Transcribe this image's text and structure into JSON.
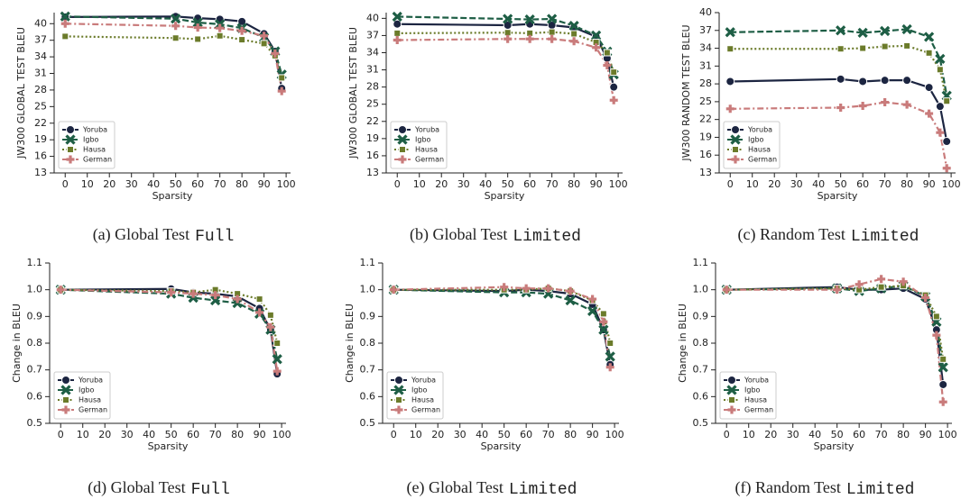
{
  "chart_data": [
    {
      "type": "line",
      "caption": {
        "text": "(a) Global Test",
        "code": "Full"
      },
      "xlabel": "Sparsity",
      "ylabel": "JW300 GLOBAL TEST BLEU",
      "x": [
        0,
        50,
        60,
        70,
        80,
        90,
        95,
        98
      ],
      "xlim": [
        -5,
        102
      ],
      "xticks": [
        0,
        10,
        20,
        30,
        40,
        50,
        60,
        70,
        80,
        90,
        100
      ],
      "ylim": [
        13,
        42
      ],
      "yticks": [
        13,
        16,
        19,
        22,
        25,
        28,
        31,
        34,
        37,
        40
      ],
      "legend": "lower left",
      "series": [
        {
          "name": "Yoruba",
          "color": "#1c2541",
          "dash": "solid",
          "marker": "circle",
          "values": [
            41.2,
            41.3,
            41.0,
            40.8,
            40.4,
            38.2,
            35.0,
            28.3
          ]
        },
        {
          "name": "Igbo",
          "color": "#1e5e45",
          "dash": "dashed",
          "marker": "x",
          "values": [
            41.3,
            40.9,
            40.2,
            39.9,
            39.2,
            37.5,
            35.0,
            30.8
          ]
        },
        {
          "name": "Hausa",
          "color": "#6b7b2a",
          "dash": "dotted",
          "marker": "square",
          "values": [
            37.7,
            37.4,
            37.2,
            37.8,
            37.1,
            36.4,
            34.2,
            30.2
          ]
        },
        {
          "name": "German",
          "color": "#c97b7b",
          "dash": "dashdot",
          "marker": "plus",
          "values": [
            40.0,
            39.6,
            39.3,
            39.2,
            38.7,
            37.8,
            34.6,
            27.8
          ]
        }
      ]
    },
    {
      "type": "line",
      "caption": {
        "text": "(b) Global Test",
        "code": "Limited"
      },
      "xlabel": "Sparsity",
      "ylabel": "JW300 GLOBAL TEST BLEU",
      "x": [
        0,
        50,
        60,
        70,
        80,
        90,
        95,
        98
      ],
      "xlim": [
        -5,
        102
      ],
      "xticks": [
        0,
        10,
        20,
        30,
        40,
        50,
        60,
        70,
        80,
        90,
        100
      ],
      "ylim": [
        13,
        41
      ],
      "yticks": [
        13,
        16,
        19,
        22,
        25,
        28,
        31,
        34,
        37,
        40
      ],
      "legend": "lower left",
      "series": [
        {
          "name": "Yoruba",
          "color": "#1c2541",
          "dash": "solid",
          "marker": "circle",
          "values": [
            39.0,
            38.8,
            39.0,
            38.8,
            38.4,
            36.8,
            33.0,
            28.0
          ]
        },
        {
          "name": "Igbo",
          "color": "#1e5e45",
          "dash": "dashed",
          "marker": "x",
          "values": [
            40.3,
            39.9,
            39.8,
            39.9,
            38.7,
            37.0,
            34.2,
            30.2
          ]
        },
        {
          "name": "Hausa",
          "color": "#6b7b2a",
          "dash": "dotted",
          "marker": "square",
          "values": [
            37.4,
            37.5,
            37.4,
            37.6,
            37.3,
            35.8,
            34.0,
            30.6
          ]
        },
        {
          "name": "German",
          "color": "#c97b7b",
          "dash": "dashdot",
          "marker": "plus",
          "values": [
            36.2,
            36.4,
            36.4,
            36.4,
            36.0,
            34.9,
            31.8,
            25.7
          ]
        }
      ]
    },
    {
      "type": "line",
      "caption": {
        "text": "(c) Random Test",
        "code": "Limited"
      },
      "xlabel": "Sparsity",
      "ylabel": "JW300 RANDOM TEST BLEU",
      "x": [
        0,
        50,
        60,
        70,
        80,
        90,
        95,
        98
      ],
      "xlim": [
        -5,
        102
      ],
      "xticks": [
        0,
        10,
        20,
        30,
        40,
        50,
        60,
        70,
        80,
        90,
        100
      ],
      "ylim": [
        13,
        40
      ],
      "yticks": [
        13,
        16,
        19,
        22,
        25,
        28,
        31,
        34,
        37,
        40
      ],
      "legend": "lower left",
      "series": [
        {
          "name": "Yoruba",
          "color": "#1c2541",
          "dash": "solid",
          "marker": "circle",
          "values": [
            28.4,
            28.8,
            28.4,
            28.6,
            28.6,
            27.4,
            24.2,
            18.3
          ]
        },
        {
          "name": "Igbo",
          "color": "#1e5e45",
          "dash": "dashed",
          "marker": "x",
          "values": [
            36.7,
            37.0,
            36.6,
            36.9,
            37.2,
            35.9,
            32.2,
            26.0
          ]
        },
        {
          "name": "Hausa",
          "color": "#6b7b2a",
          "dash": "dotted",
          "marker": "square",
          "values": [
            33.9,
            33.9,
            34.0,
            34.3,
            34.4,
            33.2,
            30.4,
            25.1
          ]
        },
        {
          "name": "German",
          "color": "#c97b7b",
          "dash": "dashdot",
          "marker": "plus",
          "values": [
            23.8,
            24.0,
            24.3,
            24.9,
            24.5,
            23.0,
            19.8,
            13.8
          ]
        }
      ]
    },
    {
      "type": "line",
      "caption": {
        "text": "(d) Global Test",
        "code": "Full"
      },
      "xlabel": "Sparsity",
      "ylabel": "Change in BLEU",
      "x": [
        0,
        50,
        60,
        70,
        80,
        90,
        95,
        98
      ],
      "xlim": [
        -5,
        102
      ],
      "xticks": [
        0,
        10,
        20,
        30,
        40,
        50,
        60,
        70,
        80,
        90,
        100
      ],
      "ylim": [
        0.5,
        1.1
      ],
      "yticks": [
        0.5,
        0.6,
        0.7,
        0.8,
        0.9,
        {
          "value": 1,
          "label": "1.0"
        },
        1.1
      ],
      "legend": "lower left",
      "series": [
        {
          "name": "Yoruba",
          "color": "#1c2541",
          "dash": "solid",
          "marker": "circle",
          "values": [
            1,
            1.003,
            0.99,
            0.985,
            0.975,
            0.93,
            0.85,
            0.685
          ]
        },
        {
          "name": "Igbo",
          "color": "#1e5e45",
          "dash": "dashed",
          "marker": "x",
          "values": [
            1,
            0.985,
            0.97,
            0.96,
            0.95,
            0.91,
            0.85,
            0.74
          ]
        },
        {
          "name": "Hausa",
          "color": "#6b7b2a",
          "dash": "dotted",
          "marker": "square",
          "values": [
            1,
            0.995,
            0.99,
            1.0,
            0.985,
            0.965,
            0.905,
            0.8
          ]
        },
        {
          "name": "German",
          "color": "#c97b7b",
          "dash": "dashdot",
          "marker": "plus",
          "values": [
            1,
            0.99,
            0.985,
            0.98,
            0.965,
            0.915,
            0.86,
            0.695
          ]
        }
      ]
    },
    {
      "type": "line",
      "caption": {
        "text": "(e) Global Test",
        "code": "Limited"
      },
      "xlabel": "Sparsity",
      "ylabel": "Change in BLEU",
      "x": [
        0,
        50,
        60,
        70,
        80,
        90,
        95,
        98
      ],
      "xlim": [
        -5,
        102
      ],
      "xticks": [
        0,
        10,
        20,
        30,
        40,
        50,
        60,
        70,
        80,
        90,
        100
      ],
      "ylim": [
        0.5,
        1.1
      ],
      "yticks": [
        0.5,
        0.6,
        0.7,
        0.8,
        0.9,
        {
          "value": 1,
          "label": "1.0"
        },
        1.1
      ],
      "legend": "lower left",
      "series": [
        {
          "name": "Yoruba",
          "color": "#1c2541",
          "dash": "solid",
          "marker": "circle",
          "values": [
            1,
            0.995,
            1.0,
            0.995,
            0.985,
            0.945,
            0.85,
            0.72
          ]
        },
        {
          "name": "Igbo",
          "color": "#1e5e45",
          "dash": "dashed",
          "marker": "x",
          "values": [
            1,
            0.99,
            0.99,
            0.985,
            0.96,
            0.92,
            0.85,
            0.75
          ]
        },
        {
          "name": "Hausa",
          "color": "#6b7b2a",
          "dash": "dotted",
          "marker": "square",
          "values": [
            1,
            1.0,
            1.0,
            1.005,
            0.995,
            0.96,
            0.91,
            0.8
          ]
        },
        {
          "name": "German",
          "color": "#c97b7b",
          "dash": "dashdot",
          "marker": "plus",
          "values": [
            1,
            1.01,
            1.005,
            1.005,
            0.995,
            0.965,
            0.88,
            0.71
          ]
        }
      ]
    },
    {
      "type": "line",
      "caption": {
        "text": "(f) Random Test",
        "code": "Limited"
      },
      "xlabel": "Sparsity",
      "ylabel": "Change in BLEU",
      "x": [
        0,
        50,
        60,
        70,
        80,
        90,
        95,
        98
      ],
      "xlim": [
        -5,
        102
      ],
      "xticks": [
        0,
        10,
        20,
        30,
        40,
        50,
        60,
        70,
        80,
        90,
        100
      ],
      "ylim": [
        0.5,
        1.1
      ],
      "yticks": [
        0.5,
        0.6,
        0.7,
        0.8,
        0.9,
        {
          "value": 1,
          "label": "1.0"
        },
        1.1
      ],
      "legend": "lower left",
      "series": [
        {
          "name": "Yoruba",
          "color": "#1c2541",
          "dash": "solid",
          "marker": "circle",
          "values": [
            1,
            1.01,
            1.0,
            1.0,
            1.005,
            0.965,
            0.85,
            0.645
          ]
        },
        {
          "name": "Igbo",
          "color": "#1e5e45",
          "dash": "dashed",
          "marker": "x",
          "values": [
            1,
            1.005,
            0.995,
            1.005,
            1.015,
            0.975,
            0.88,
            0.71
          ]
        },
        {
          "name": "Hausa",
          "color": "#6b7b2a",
          "dash": "dotted",
          "marker": "square",
          "values": [
            1,
            1.005,
            1.0,
            1.01,
            1.015,
            0.98,
            0.9,
            0.74
          ]
        },
        {
          "name": "German",
          "color": "#c97b7b",
          "dash": "dashdot",
          "marker": "plus",
          "values": [
            1,
            1.0,
            1.02,
            1.04,
            1.03,
            0.97,
            0.83,
            0.58
          ]
        }
      ]
    }
  ]
}
